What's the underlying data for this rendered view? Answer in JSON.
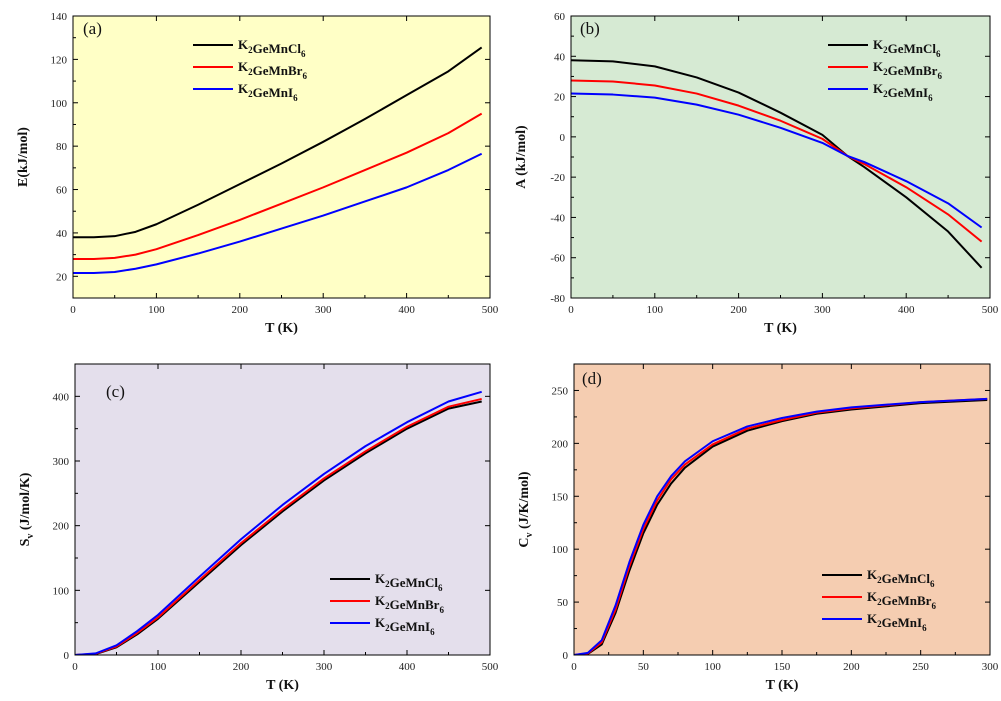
{
  "chart_data": [
    {
      "panel": "(a)",
      "type": "line",
      "xlabel": "T (K)",
      "ylabel": "E(kJ/mol)",
      "xlim": [
        0,
        500
      ],
      "ylim": [
        10,
        140
      ],
      "xticks": [
        0,
        100,
        200,
        300,
        400,
        500
      ],
      "yticks": [
        20,
        40,
        60,
        80,
        100,
        120,
        140
      ],
      "background": "#ffffc6",
      "legend_position": "top-right",
      "x": [
        0,
        25,
        50,
        75,
        100,
        150,
        200,
        250,
        300,
        350,
        400,
        450,
        490
      ],
      "series": [
        {
          "name": "K2GeMnCl6",
          "color": "#000000",
          "values": [
            38,
            38,
            38.5,
            40.5,
            44,
            53,
            62.5,
            72,
            82,
            92.5,
            103.5,
            114.5,
            125.5
          ]
        },
        {
          "name": "K2GeMnBr6",
          "color": "#ff0000",
          "values": [
            28,
            28,
            28.5,
            30,
            32.5,
            39,
            46,
            53.5,
            61,
            69,
            77,
            86,
            95
          ]
        },
        {
          "name": "K2GeMnI6",
          "color": "#0000ff",
          "values": [
            21.5,
            21.5,
            22,
            23.5,
            25.5,
            30.5,
            36,
            42,
            48,
            54.5,
            61,
            69,
            76.5
          ]
        }
      ]
    },
    {
      "panel": "(b)",
      "type": "line",
      "xlabel": "T (K)",
      "ylabel": "A (kJ/mol)",
      "xlim": [
        0,
        500
      ],
      "ylim": [
        -80,
        60
      ],
      "xticks": [
        0,
        100,
        200,
        300,
        400,
        500
      ],
      "yticks": [
        -80,
        -60,
        -40,
        -20,
        0,
        20,
        40,
        60
      ],
      "background": "#d6ead3",
      "legend_position": "top-right",
      "x": [
        0,
        50,
        100,
        150,
        200,
        250,
        300,
        330,
        350,
        400,
        450,
        490
      ],
      "series": [
        {
          "name": "K2GeMnCl6",
          "color": "#000000",
          "values": [
            38,
            37.5,
            35,
            29.5,
            22,
            12,
            1,
            -9.5,
            -15,
            -30,
            -47,
            -65
          ]
        },
        {
          "name": "K2GeMnBr6",
          "color": "#ff0000",
          "values": [
            28,
            27.5,
            25.5,
            21.5,
            15.5,
            8,
            -1,
            -9.5,
            -13.5,
            -25,
            -38.5,
            -52
          ]
        },
        {
          "name": "K2GeMnI6",
          "color": "#0000ff",
          "values": [
            21.5,
            21,
            19.5,
            16,
            11,
            4.5,
            -3,
            -9.5,
            -12.5,
            -22,
            -33,
            -45
          ]
        }
      ]
    },
    {
      "panel": "(c)",
      "type": "line",
      "xlabel": "T (K)",
      "ylabel": "Sv (J/mol/K)",
      "ylabel_main": "S",
      "ylabel_sub": "v",
      "ylabel_rest": " (J/mol/K)",
      "xlim": [
        0,
        500
      ],
      "ylim": [
        0,
        450
      ],
      "xticks": [
        0,
        100,
        200,
        300,
        400,
        500
      ],
      "yticks": [
        0,
        100,
        200,
        300,
        400
      ],
      "background": "#e4dfec",
      "legend_position": "bottom-right",
      "x": [
        0,
        25,
        50,
        75,
        100,
        150,
        200,
        250,
        300,
        350,
        400,
        450,
        490
      ],
      "series": [
        {
          "name": "K2GeMnCl6",
          "color": "#000000",
          "values": [
            0,
            1.5,
            12,
            32,
            56,
            113,
            170,
            222,
            270,
            312,
            350,
            381,
            392
          ]
        },
        {
          "name": "K2GeMnBr6",
          "color": "#ff0000",
          "values": [
            0,
            2,
            13,
            34,
            58,
            116,
            173,
            225,
            273,
            315,
            353,
            384,
            396
          ]
        },
        {
          "name": "K2GeMnI6",
          "color": "#0000ff",
          "values": [
            0,
            2.5,
            15,
            37,
            62,
            121,
            179,
            232,
            280,
            323,
            360,
            392,
            407
          ]
        }
      ]
    },
    {
      "panel": "(d)",
      "type": "line",
      "xlabel": "T (K)",
      "ylabel": "Cv (J/K/mol)",
      "ylabel_main": "C",
      "ylabel_sub": "v",
      "ylabel_rest": " (J/K/mol)",
      "xlim": [
        0,
        300
      ],
      "ylim": [
        0,
        275
      ],
      "xticks": [
        0,
        50,
        100,
        150,
        200,
        250,
        300
      ],
      "yticks": [
        0,
        50,
        100,
        150,
        200,
        250
      ],
      "background": "#f5cdb1",
      "legend_position": "bottom-right",
      "x": [
        0,
        10,
        20,
        30,
        40,
        50,
        60,
        70,
        80,
        100,
        125,
        150,
        175,
        200,
        250,
        298
      ],
      "series": [
        {
          "name": "K2GeMnCl6",
          "color": "#000000",
          "values": [
            0,
            1,
            10,
            40,
            80,
            115,
            142,
            162,
            177,
            197,
            212,
            221,
            228,
            232,
            238,
            241
          ]
        },
        {
          "name": "K2GeMnBr6",
          "color": "#ff0000",
          "values": [
            0,
            1.5,
            12,
            43,
            84,
            119,
            146,
            166,
            180,
            199,
            214,
            222,
            229,
            233,
            239,
            242
          ]
        },
        {
          "name": "K2GeMnI6",
          "color": "#0000ff",
          "values": [
            0,
            2,
            14,
            47,
            88,
            123,
            150,
            169,
            183,
            202,
            216,
            224,
            230,
            234,
            239,
            242
          ]
        }
      ]
    }
  ]
}
